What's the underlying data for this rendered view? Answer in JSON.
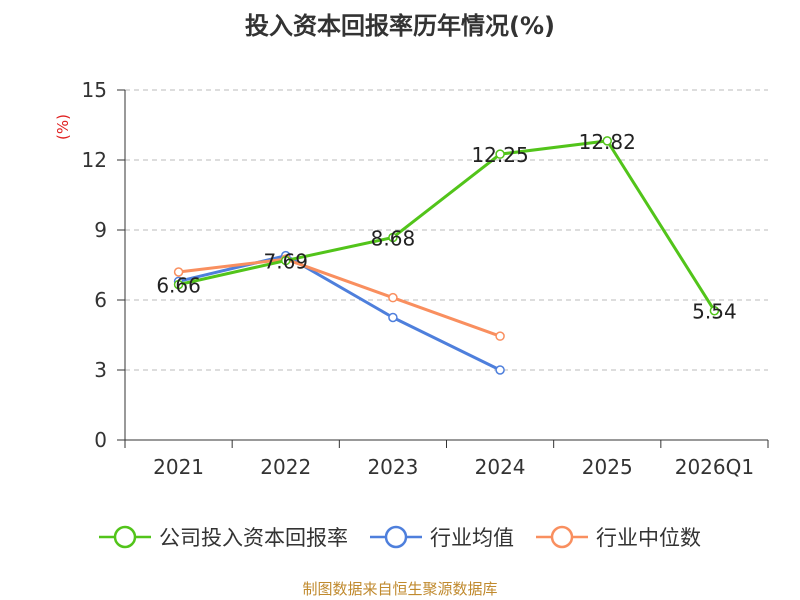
{
  "colors": {
    "company": "#52c41a",
    "industry_avg": "#4e7fdc",
    "industry_median": "#f98f5f",
    "grid": "#bbbbbb",
    "axis": "#333333",
    "ylabel": "#e02020",
    "source": "#c08a2e"
  },
  "chart_data": {
    "type": "line",
    "title": "投入资本回报率历年情况(%)",
    "ylabel": "(%)",
    "xlabel": "",
    "ylim": [
      0,
      15
    ],
    "yticks": [
      0,
      3,
      6,
      9,
      12,
      15
    ],
    "categories": [
      "2021",
      "2022",
      "2023",
      "2024",
      "2025",
      "2026Q1"
    ],
    "grid": true,
    "legend_position": "bottom",
    "series": [
      {
        "name": "公司投入资本回报率",
        "key": "company",
        "values": [
          6.66,
          7.69,
          8.68,
          12.25,
          12.82,
          5.54
        ],
        "labels": [
          "6.66",
          "7.69",
          "8.68",
          "12.25",
          "12.82",
          "5.54"
        ]
      },
      {
        "name": "行业均值",
        "key": "industry_avg",
        "values": [
          6.8,
          7.9,
          5.25,
          3.0,
          null,
          null
        ]
      },
      {
        "name": "行业中位数",
        "key": "industry_median",
        "values": [
          7.2,
          7.75,
          6.1,
          4.45,
          null,
          null
        ]
      }
    ]
  },
  "source_note": "制图数据来自恒生聚源数据库"
}
